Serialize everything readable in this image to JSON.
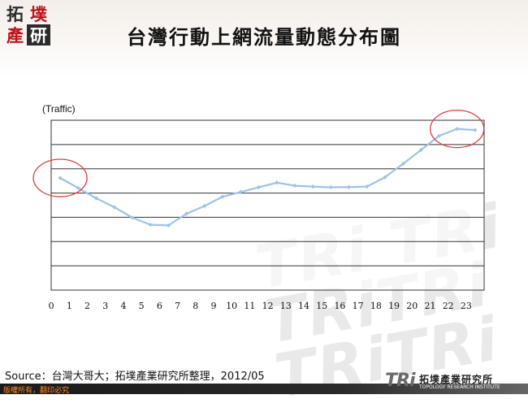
{
  "header": {
    "title": "台灣行動上網流量動態分布圖",
    "logo": [
      "拓",
      "墣",
      "產",
      "研"
    ]
  },
  "chart_data": {
    "type": "line",
    "ylabel": "(Traffic)",
    "x": [
      0,
      1,
      2,
      3,
      4,
      5,
      6,
      7,
      8,
      9,
      10,
      11,
      12,
      13,
      14,
      15,
      16,
      17,
      18,
      19,
      20,
      21,
      22,
      23
    ],
    "values": [
      4.8,
      4.37,
      3.93,
      3.55,
      3.1,
      2.8,
      2.77,
      3.27,
      3.6,
      4.0,
      4.2,
      4.4,
      4.6,
      4.47,
      4.43,
      4.4,
      4.41,
      4.43,
      4.83,
      5.4,
      6.0,
      6.6,
      6.9,
      6.85
    ],
    "ylim": [
      0,
      7.27
    ],
    "ytick_count": 7,
    "grid": "horizontal",
    "line_color": "#9cc3e8",
    "highlights": [
      {
        "x": 0,
        "y": 4.8,
        "color": "#e03c3c"
      },
      {
        "x": 22,
        "y": 6.9,
        "color": "#e03c3c"
      }
    ]
  },
  "watermark": "TRi TRi\nTRiTRi\nTRiTRi",
  "source": "Source：台灣大哥大；拓墣產業研究所整理，2012/05",
  "footer": {
    "copyright": "版權所有，翻印必究",
    "org_mark": "TRi",
    "org_name_zh": "拓墣產業研究所",
    "org_name_en": "TOPOLOGY RESEARCH INSTITUTE"
  }
}
